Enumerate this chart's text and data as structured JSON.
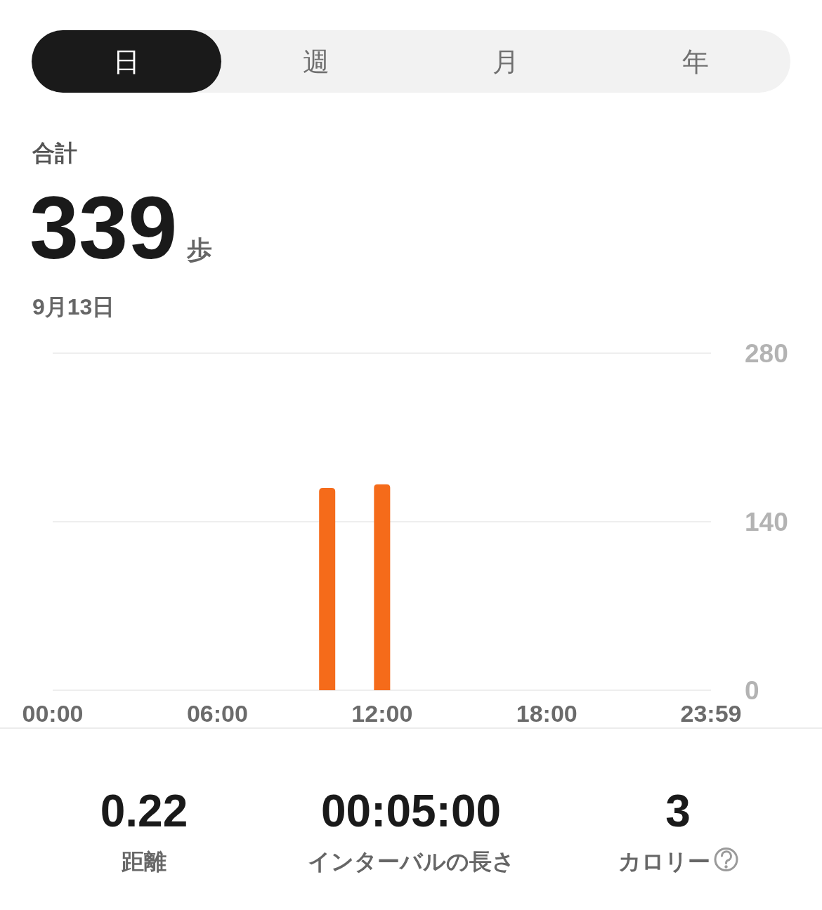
{
  "chart_data": [
    {
      "type": "other",
      "annotations": [
        "日",
        "週",
        "月",
        "年"
      ]
    },
    {
      "type": "bar",
      "title": "合計",
      "subtitle": "9月13日",
      "annotations": [
        "339",
        "歩"
      ],
      "x": [
        10,
        12
      ],
      "values": [
        168,
        171
      ],
      "color": "#f56b1a",
      "xlim": [
        0,
        23.983
      ],
      "xticks": [
        {
          "value": 0,
          "label": "00:00"
        },
        {
          "value": 6,
          "label": "06:00"
        },
        {
          "value": 12,
          "label": "12:00"
        },
        {
          "value": 18,
          "label": "18:00"
        },
        {
          "value": 23.983,
          "label": "23:59"
        }
      ],
      "ylim": [
        0,
        280
      ],
      "yticks": [
        0,
        140,
        280
      ],
      "grid": "y"
    },
    {
      "type": "other",
      "annotations": [
        "0.22",
        "距離",
        "00:05:00",
        "インターバルの長さ",
        "3",
        "カロリー"
      ]
    }
  ]
}
